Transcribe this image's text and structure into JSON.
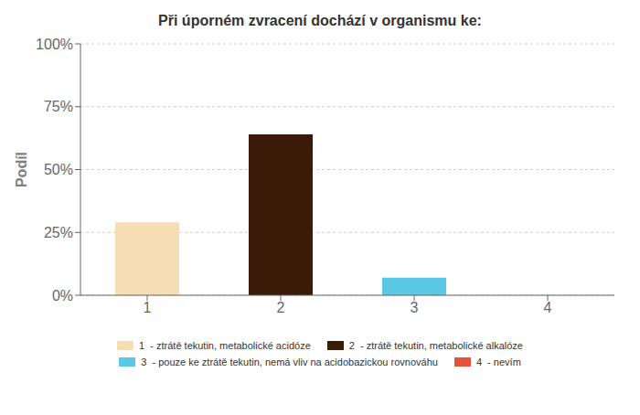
{
  "chart_data": {
    "type": "bar",
    "title": "Při úporném zvracení dochází v organismu ke:",
    "categories": [
      1,
      2,
      3,
      4
    ],
    "values": [
      0.29,
      0.64,
      0.07,
      0.0
    ],
    "colors": [
      "#f5deb3",
      "#3b1a08",
      "#5bc8e8",
      "#e8503a"
    ],
    "ylabel": "Podíl",
    "ylim": [
      0,
      1.0
    ],
    "yticks": [
      {
        "value": 0.0,
        "label": "0%"
      },
      {
        "value": 0.25,
        "label": "25%"
      },
      {
        "value": 0.5,
        "label": "50%"
      },
      {
        "value": 0.75,
        "label": "75%"
      },
      {
        "value": 1.0,
        "label": "100%"
      }
    ],
    "grid": true,
    "legend": "bottom",
    "legend_labels": [
      "1  - ztrátě tekutin, metabolické acidóze",
      "2  - ztrátě tekutin, metabolické alkalóze",
      "3  - pouze ke ztrátě tekutin, nemá vliv na acidobazickou rovnováhu",
      "4  - nevím"
    ]
  }
}
